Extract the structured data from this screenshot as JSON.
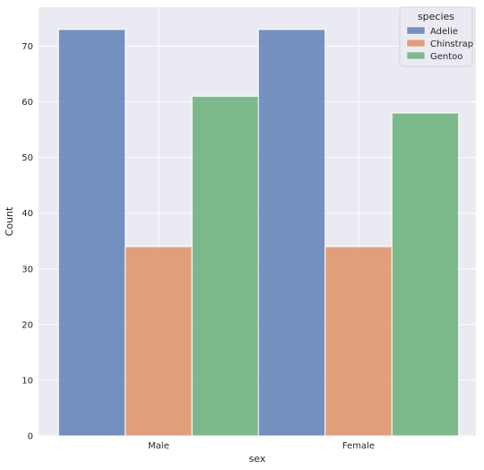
{
  "chart_data": {
    "type": "bar",
    "title": "",
    "xlabel": "sex",
    "ylabel": "Count",
    "categories": [
      "Male",
      "Female"
    ],
    "ylim": [
      0,
      77
    ],
    "yticks": [
      0,
      10,
      20,
      30,
      40,
      50,
      60,
      70
    ],
    "grid": true,
    "legend": {
      "title": "species",
      "placement": "top-right"
    },
    "series": [
      {
        "name": "Adelie",
        "values": [
          73,
          73
        ],
        "color": "#4c72b0"
      },
      {
        "name": "Chinstrap",
        "values": [
          34,
          34
        ],
        "color": "#dd8452"
      },
      {
        "name": "Gentoo",
        "values": [
          61,
          58
        ],
        "color": "#55a868"
      }
    ],
    "background_color": "#eaeaf2"
  }
}
